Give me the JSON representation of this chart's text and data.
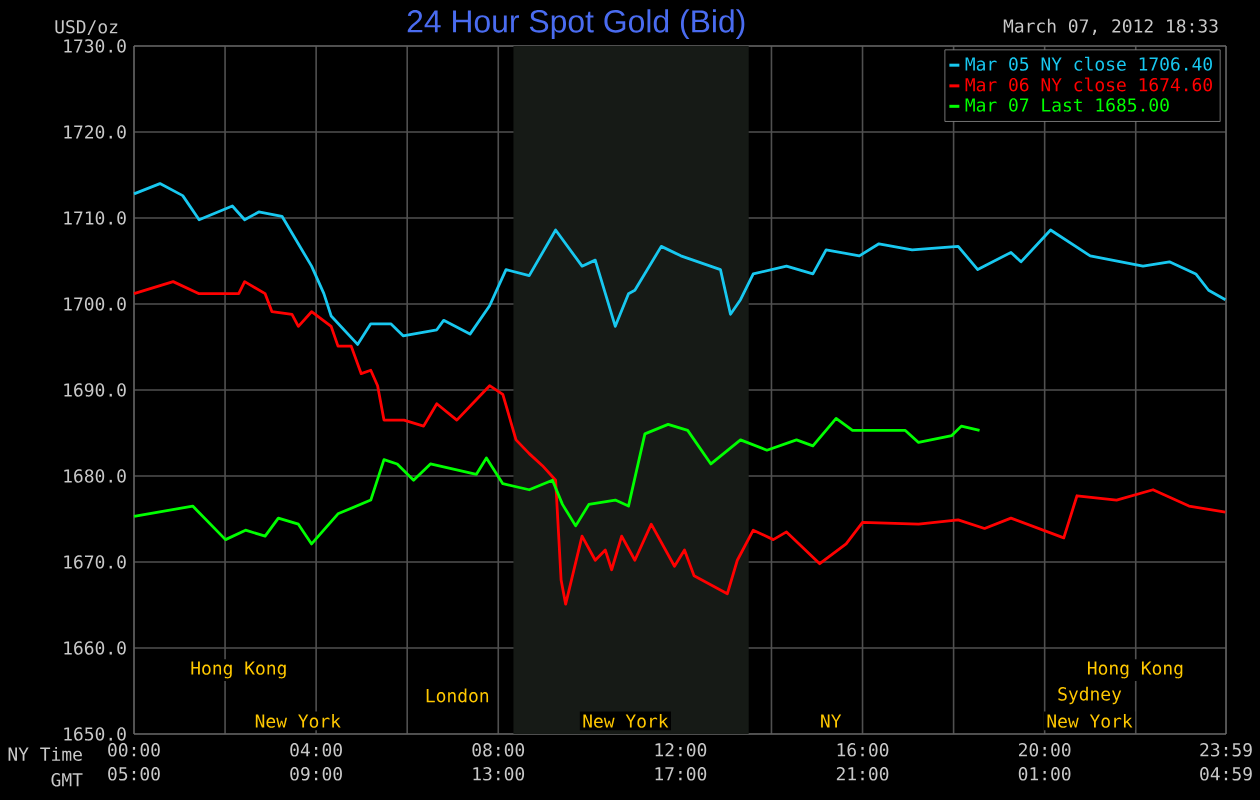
{
  "chart_data": {
    "type": "line",
    "title": "24 Hour Spot Gold (Bid)",
    "subtitle": "March 07, 2012 18:33",
    "ylabel": "USD/oz",
    "xlabel": "NY Time",
    "x2label": "GMT",
    "xlim": [
      0,
      23.983
    ],
    "xticks": [
      {
        "value": 0,
        "label": "00:00"
      },
      {
        "value": 2,
        "label": null
      },
      {
        "value": 4,
        "label": "04:00"
      },
      {
        "value": 6,
        "label": null
      },
      {
        "value": 8,
        "label": "08:00"
      },
      {
        "value": 10,
        "label": null
      },
      {
        "value": 12,
        "label": "12:00"
      },
      {
        "value": 14,
        "label": null
      },
      {
        "value": 16,
        "label": "16:00"
      },
      {
        "value": 18,
        "label": null
      },
      {
        "value": 20,
        "label": "20:00"
      },
      {
        "value": 22,
        "label": null
      },
      {
        "value": 23.983,
        "label": "23:59"
      }
    ],
    "x2lim": [
      "2012-03-07T05:00",
      "2012-03-08T04:59"
    ],
    "x2ticks": [
      {
        "value": "2012-03-07T05:00",
        "label": "05:00"
      },
      {
        "value": "2012-03-07T09:00",
        "label": "09:00"
      },
      {
        "value": "2012-03-07T13:00",
        "label": "13:00"
      },
      {
        "value": "2012-03-07T17:00",
        "label": "17:00"
      },
      {
        "value": "2012-03-07T21:00",
        "label": "21:00"
      },
      {
        "value": "2012-03-08T01:00",
        "label": "01:00"
      },
      {
        "value": "2012-03-08T04:59",
        "label": "04:59"
      }
    ],
    "ylim": [
      1650,
      1730
    ],
    "yticks": [
      {
        "value": 1650,
        "label": "1650.0"
      },
      {
        "value": 1660,
        "label": "1660.0"
      },
      {
        "value": 1670,
        "label": "1670.0"
      },
      {
        "value": 1680,
        "label": "1680.0"
      },
      {
        "value": 1690,
        "label": "1690.0"
      },
      {
        "value": 1700,
        "label": "1700.0"
      },
      {
        "value": 1710,
        "label": "1710.0"
      },
      {
        "value": 1720,
        "label": "1720.0"
      },
      {
        "value": 1730,
        "label": "1730.0"
      }
    ],
    "grid": true,
    "legend": "top right",
    "bands": [
      {
        "axis": "x",
        "from": 8.333,
        "to": 13.5,
        "color": "#161a16"
      }
    ],
    "annotations": [
      "Hong Kong",
      "Hong Kong",
      "London",
      "Sydney",
      "New York",
      "New York",
      "NY",
      "New York"
    ],
    "series": [
      {
        "name": "Mar 05 NY close 1706.40",
        "color": "#18c8f0",
        "x": [
          0,
          0.57,
          1.07,
          1.43,
          2.16,
          2.43,
          2.74,
          3.25,
          3.9,
          4.17,
          4.33,
          4.91,
          5.2,
          5.64,
          5.91,
          6.65,
          6.8,
          7.38,
          7.81,
          8.17,
          8.68,
          9.26,
          9.84,
          10.13,
          10.57,
          10.86,
          11.0,
          11.58,
          12.01,
          12.88,
          13.1,
          13.32,
          13.6,
          14.33,
          14.91,
          15.2,
          15.93,
          16.36,
          17.09,
          18.1,
          18.53,
          19.26,
          19.48,
          20.13,
          21.0,
          22.16,
          22.74,
          23.32,
          23.6,
          23.97
        ],
        "values": [
          1712.8,
          1714.0,
          1712.6,
          1709.8,
          1711.4,
          1709.8,
          1710.7,
          1710.2,
          1704.4,
          1701.2,
          1698.6,
          1695.3,
          1697.7,
          1697.7,
          1696.3,
          1697.0,
          1698.1,
          1696.5,
          1699.8,
          1704.0,
          1703.3,
          1708.6,
          1704.4,
          1705.1,
          1697.4,
          1701.2,
          1701.6,
          1706.7,
          1705.6,
          1704.0,
          1698.8,
          1700.5,
          1703.5,
          1704.4,
          1703.5,
          1706.3,
          1705.6,
          1707.0,
          1706.3,
          1706.7,
          1704.0,
          1706.0,
          1704.9,
          1708.6,
          1705.6,
          1704.4,
          1704.9,
          1703.5,
          1701.6,
          1700.5
        ]
      },
      {
        "name": "Mar 06 NY close 1674.60",
        "color": "#ff0000",
        "x": [
          0,
          0.86,
          1.43,
          2.3,
          2.43,
          2.88,
          3.03,
          3.47,
          3.61,
          3.9,
          4.33,
          4.48,
          4.77,
          4.99,
          5.2,
          5.35,
          5.49,
          5.93,
          6.36,
          6.65,
          7.09,
          7.38,
          7.81,
          8.1,
          8.39,
          8.68,
          8.97,
          9.26,
          9.38,
          9.48,
          9.84,
          10.13,
          10.35,
          10.49,
          10.71,
          11.0,
          11.36,
          11.87,
          12.09,
          12.3,
          13.03,
          13.25,
          13.6,
          14.04,
          14.33,
          15.06,
          15.64,
          16.0,
          17.23,
          18.1,
          18.68,
          19.26,
          20.42,
          20.71,
          21.58,
          22.38,
          23.17,
          23.97
        ],
        "values": [
          1701.2,
          1702.6,
          1701.2,
          1701.2,
          1702.6,
          1701.2,
          1699.1,
          1698.8,
          1697.4,
          1699.1,
          1697.4,
          1695.1,
          1695.1,
          1691.9,
          1692.3,
          1690.5,
          1686.5,
          1686.5,
          1685.8,
          1688.4,
          1686.5,
          1688.1,
          1690.5,
          1689.5,
          1684.2,
          1682.6,
          1681.2,
          1679.5,
          1667.9,
          1665.1,
          1673.0,
          1670.2,
          1671.4,
          1669.1,
          1673.0,
          1670.2,
          1674.4,
          1669.5,
          1671.4,
          1668.4,
          1666.3,
          1670.2,
          1673.7,
          1672.6,
          1673.5,
          1669.8,
          1672.1,
          1674.6,
          1674.4,
          1674.9,
          1673.9,
          1675.1,
          1672.8,
          1677.7,
          1677.2,
          1678.4,
          1676.5,
          1675.8
        ]
      },
      {
        "name": "Mar 07 Last 1685.00",
        "color": "#00ff00",
        "x": [
          0,
          1.29,
          2.01,
          2.45,
          2.88,
          3.17,
          3.61,
          3.9,
          4.48,
          5.2,
          5.49,
          5.78,
          6.14,
          6.51,
          7.52,
          7.74,
          8.1,
          8.68,
          9.19,
          9.41,
          9.7,
          9.99,
          10.57,
          10.86,
          11.22,
          11.73,
          12.16,
          12.67,
          13.32,
          13.9,
          14.55,
          14.91,
          15.42,
          15.78,
          16.94,
          17.23,
          17.96,
          18.17,
          18.57
        ],
        "values": [
          1675.3,
          1676.5,
          1672.6,
          1673.7,
          1673.0,
          1675.1,
          1674.4,
          1672.1,
          1675.6,
          1677.2,
          1681.9,
          1681.4,
          1679.5,
          1681.4,
          1680.2,
          1682.1,
          1679.1,
          1678.4,
          1679.5,
          1676.7,
          1674.2,
          1676.7,
          1677.2,
          1676.5,
          1684.9,
          1686.0,
          1685.3,
          1681.4,
          1684.2,
          1683.0,
          1684.2,
          1683.5,
          1686.7,
          1685.3,
          1685.3,
          1683.9,
          1684.7,
          1685.8,
          1685.3
        ]
      }
    ]
  }
}
